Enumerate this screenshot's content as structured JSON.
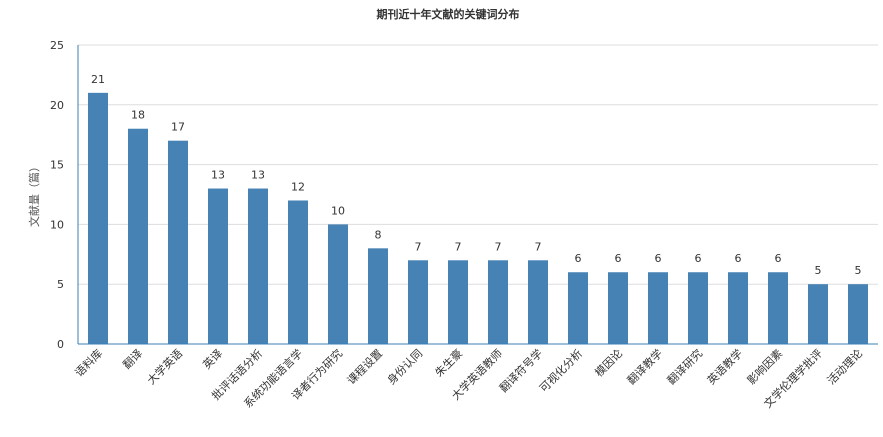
{
  "chart_data": {
    "type": "bar",
    "title": "期刊近十年文献的关键词分布",
    "xlabel": "",
    "ylabel": "文献量（篇）",
    "ylim": [
      0,
      25
    ],
    "yticks": [
      0,
      5,
      10,
      15,
      20,
      25
    ],
    "grid": true,
    "legend": "none",
    "bar_color": "#4682b4",
    "categories": [
      "语料库",
      "翻译",
      "大学英语",
      "英译",
      "批评话语分析",
      "系统功能语言学",
      "译者行为研究",
      "课程设置",
      "身份认同",
      "朱生豪",
      "大学英语教师",
      "翻译符号学",
      "可视化分析",
      "模因论",
      "翻译教学",
      "翻译研究",
      "英语教学",
      "影响因素",
      "文学伦理学批评",
      "活动理论"
    ],
    "values": [
      21,
      18,
      17,
      13,
      13,
      12,
      10,
      8,
      7,
      7,
      7,
      7,
      6,
      6,
      6,
      6,
      6,
      6,
      5,
      5
    ]
  }
}
